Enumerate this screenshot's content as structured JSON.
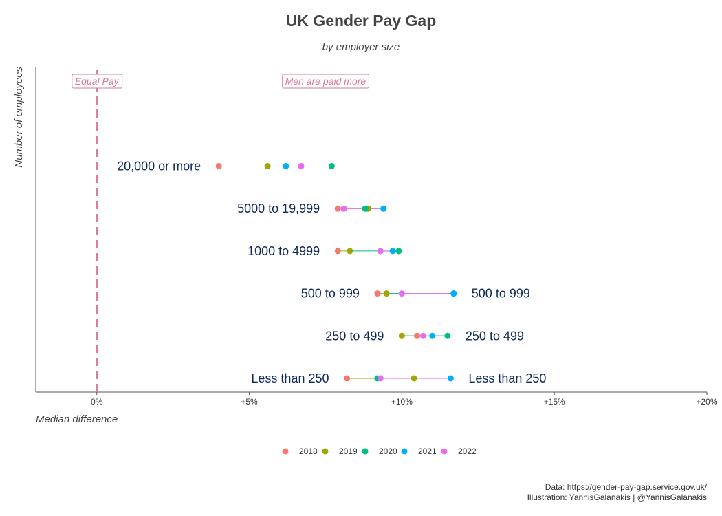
{
  "chart_data": {
    "type": "scatter",
    "title": "UK Gender Pay Gap",
    "subtitle": "by employer size",
    "xlabel": "Median difference",
    "ylabel": "Number of employees",
    "xlim": [
      -2,
      20
    ],
    "xticks": [
      0,
      5,
      10,
      15,
      20
    ],
    "xtick_labels": [
      "0%",
      "+5%",
      "+10%",
      "+15%",
      "+20%"
    ],
    "grid": false,
    "legend_position": "bottom",
    "reference_line": {
      "x": 0,
      "style": "dashed",
      "color": "#dc7f95"
    },
    "annotations": [
      {
        "text": "Equal Pay",
        "x": 0
      },
      {
        "text": "Men are paid more",
        "x": 7.5
      }
    ],
    "categories": [
      "20,000 or more",
      "5000 to 19,999",
      "1000 to 4999",
      "500 to 999",
      "250 to 499",
      "Less than 250"
    ],
    "right_labels": [
      "",
      "",
      "",
      "500 to 999",
      "250 to 499",
      "Less than 250"
    ],
    "series": [
      {
        "name": "2018",
        "color": "#F8766D",
        "values": [
          4.0,
          7.9,
          7.9,
          9.2,
          10.5,
          8.2
        ]
      },
      {
        "name": "2019",
        "color": "#A3A500",
        "values": [
          5.6,
          8.9,
          8.3,
          9.5,
          10.0,
          10.4
        ]
      },
      {
        "name": "2020",
        "color": "#00BF7D",
        "values": [
          7.7,
          8.8,
          9.9,
          11.7,
          11.5,
          9.2
        ]
      },
      {
        "name": "2021",
        "color": "#00B0F6",
        "values": [
          6.2,
          9.4,
          9.7,
          11.7,
          11.0,
          11.6
        ]
      },
      {
        "name": "2022",
        "color": "#E76BF3",
        "values": [
          6.7,
          8.1,
          9.3,
          10.0,
          10.7,
          9.3
        ]
      }
    ]
  },
  "caption": {
    "line1": "Data: https://gender-pay-gap.service.gov.uk/",
    "line2": "Illustration: YannisGalanakis | @YannisGalanakis"
  }
}
